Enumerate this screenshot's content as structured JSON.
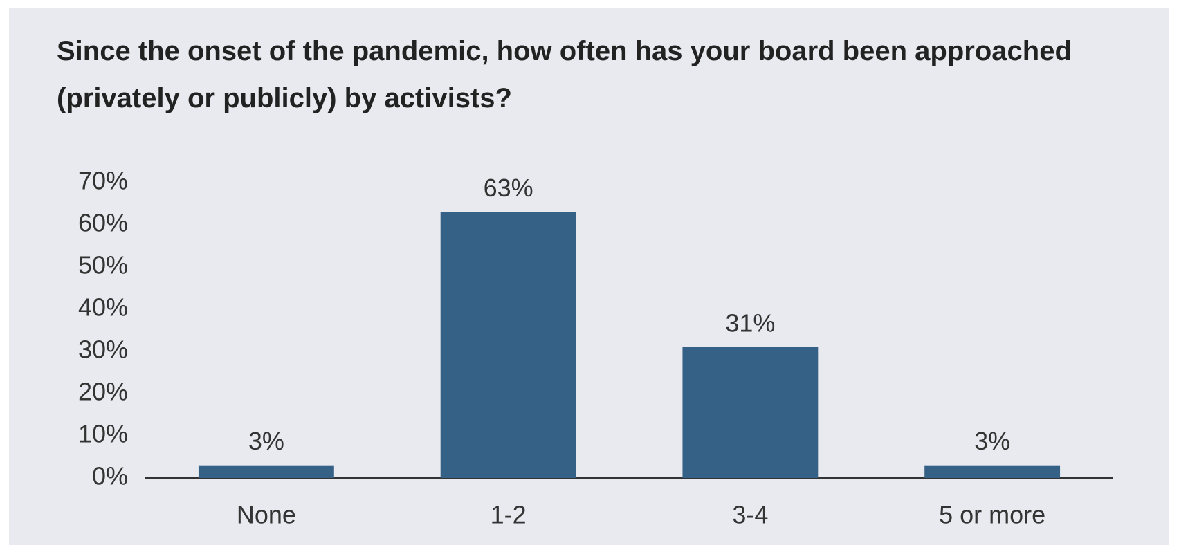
{
  "chart_data": {
    "type": "bar",
    "title": "Since the onset of the pandemic, how often has your board been approached (privately or publicly) by activists?",
    "categories": [
      "None",
      "1-2",
      "3-4",
      "5 or more"
    ],
    "values": [
      3,
      63,
      31,
      3
    ],
    "value_labels": [
      "3%",
      "63%",
      "31%",
      "3%"
    ],
    "color": "#366186",
    "ylim": [
      0,
      70
    ],
    "yticks": [
      {
        "value": 0,
        "label": "0%"
      },
      {
        "value": 10,
        "label": "10%"
      },
      {
        "value": 20,
        "label": "20%"
      },
      {
        "value": 30,
        "label": "30%"
      },
      {
        "value": 40,
        "label": "40%"
      },
      {
        "value": 50,
        "label": "50%"
      },
      {
        "value": 60,
        "label": "60%"
      },
      {
        "value": 70,
        "label": "70%"
      }
    ],
    "grid": false
  }
}
